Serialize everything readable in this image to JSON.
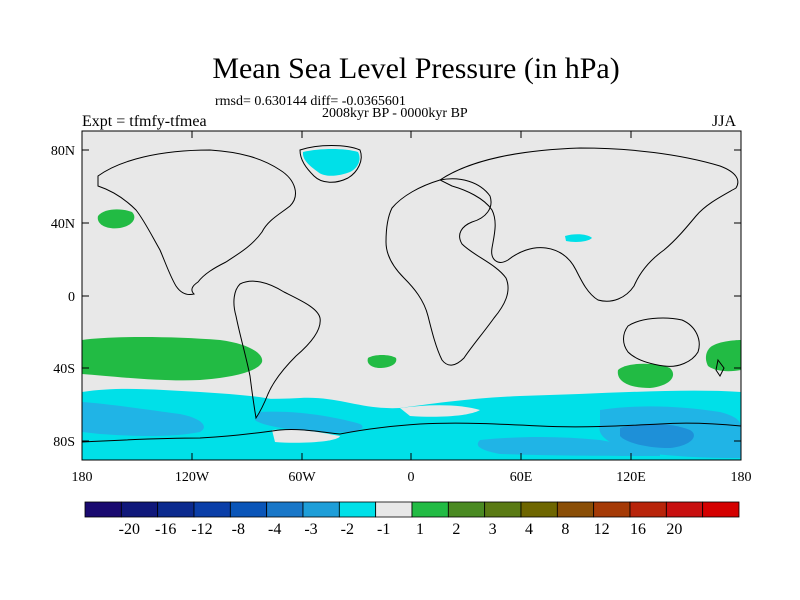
{
  "map": {
    "title": "Mean Sea Level Pressure (in hPa)",
    "stats": "rmsd= 0.630144 diff= -0.0365601",
    "period": "2008kyr BP - 0000kyr BP",
    "experiment": "Expt = tfmfy-tfmea",
    "season": "JJA",
    "lat_labels": [
      "80N",
      "40N",
      "0",
      "40S",
      "80S"
    ],
    "lon_labels": [
      "180",
      "120W",
      "60W",
      "0",
      "60E",
      "120E",
      "180"
    ],
    "colors": {
      "background": "#e8e8e8",
      "coast": "#000000",
      "neg1": "#00e0e8",
      "neg2": "#20b4e6",
      "neg3": "#1e90d8",
      "pos1": "#22bb44"
    },
    "legend": {
      "labels": [
        "-20",
        "-16",
        "-12",
        "-8",
        "-4",
        "-3",
        "-2",
        "-1",
        "1",
        "2",
        "3",
        "4",
        "8",
        "12",
        "16",
        "20"
      ],
      "colors": [
        "#1a0a70",
        "#10187a",
        "#0b2a8e",
        "#0a3ea8",
        "#0a55b8",
        "#1977c8",
        "#1e9ed8",
        "#00e0e8",
        "#e8e8e8",
        "#22bb44",
        "#4a8a22",
        "#5a7a14",
        "#6e6600",
        "#8a4e06",
        "#a53a06",
        "#b8240a",
        "#c81010",
        "#d40000"
      ]
    }
  }
}
